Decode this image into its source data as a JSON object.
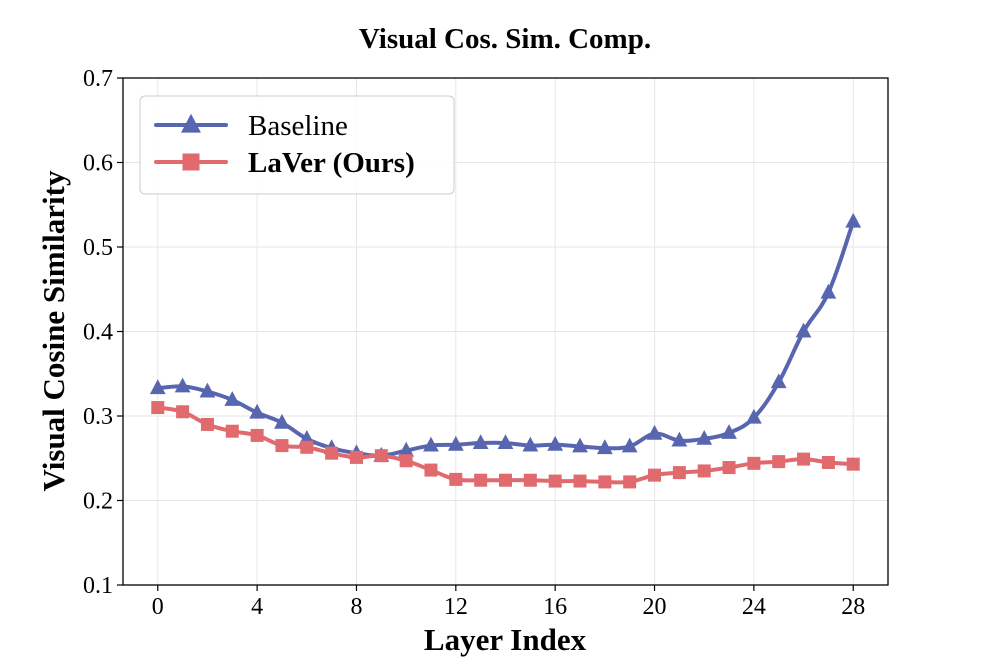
{
  "chart_data": {
    "type": "line",
    "title": "Visual Cos. Sim. Comp.",
    "xlabel": "Layer Index",
    "ylabel": "Visual Cosine Similarity",
    "xlim": [
      -1.4,
      29.4
    ],
    "ylim": [
      0.1,
      0.7
    ],
    "xticks": [
      0,
      4,
      8,
      12,
      16,
      20,
      24,
      28
    ],
    "yticks": [
      0.1,
      0.2,
      0.3,
      0.4,
      0.5,
      0.6,
      0.7
    ],
    "xtick_labels": [
      "0",
      "4",
      "8",
      "12",
      "16",
      "20",
      "24",
      "28"
    ],
    "ytick_labels": [
      "0.1",
      "0.2",
      "0.3",
      "0.4",
      "0.5",
      "0.6",
      "0.7"
    ],
    "grid": true,
    "legend_position": "top-left",
    "x": [
      0,
      1,
      2,
      3,
      4,
      5,
      6,
      7,
      8,
      9,
      10,
      11,
      12,
      13,
      14,
      15,
      16,
      17,
      18,
      19,
      20,
      21,
      22,
      23,
      24,
      25,
      26,
      27,
      28
    ],
    "series": [
      {
        "name": "Baseline",
        "color": "#5866b0",
        "marker": "triangle",
        "bold": false,
        "values": [
          0.333,
          0.335,
          0.329,
          0.319,
          0.304,
          0.292,
          0.273,
          0.262,
          0.256,
          0.253,
          0.259,
          0.265,
          0.266,
          0.268,
          0.268,
          0.265,
          0.266,
          0.264,
          0.262,
          0.264,
          0.279,
          0.271,
          0.273,
          0.28,
          0.298,
          0.34,
          0.4,
          0.446,
          0.53
        ]
      },
      {
        "name": "LaVer (Ours)",
        "color": "#e06a6e",
        "marker": "square",
        "bold": true,
        "values": [
          0.31,
          0.305,
          0.29,
          0.282,
          0.277,
          0.265,
          0.263,
          0.256,
          0.251,
          0.253,
          0.247,
          0.236,
          0.225,
          0.224,
          0.224,
          0.224,
          0.223,
          0.223,
          0.222,
          0.222,
          0.23,
          0.233,
          0.235,
          0.239,
          0.244,
          0.246,
          0.249,
          0.245,
          0.243
        ]
      }
    ]
  }
}
